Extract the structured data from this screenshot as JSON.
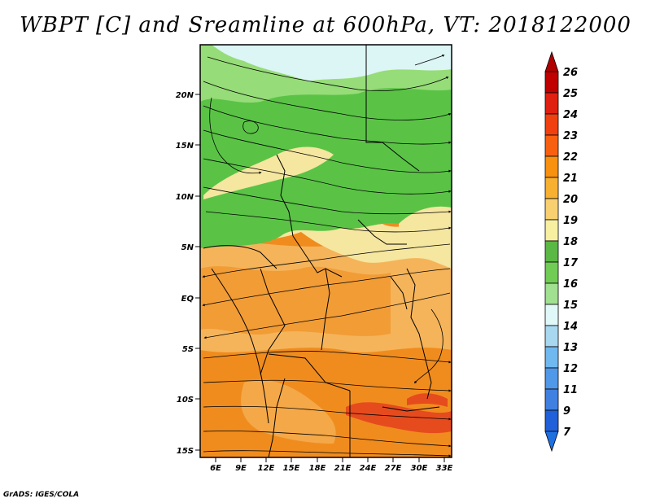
{
  "title": "WBPT [C] and Sreamline at 600hPa, VT: 2018122000",
  "credit": "GrADS: IGES/COLA",
  "lat_labels": [
    "20N",
    "15N",
    "10N",
    "5N",
    "EQ",
    "5S",
    "10S",
    "15S"
  ],
  "lon_labels": [
    "6E",
    "9E",
    "12E",
    "15E",
    "18E",
    "21E",
    "24E",
    "27E",
    "30E",
    "33E"
  ],
  "colorbar": {
    "labels": [
      "26",
      "25",
      "24",
      "23",
      "22",
      "21",
      "20",
      "19",
      "18",
      "17",
      "16",
      "15",
      "14",
      "13",
      "12",
      "11",
      "9",
      "7"
    ],
    "colors": [
      "#c00000",
      "#e02010",
      "#f04010",
      "#f86010",
      "#f89010",
      "#f8b030",
      "#f8d070",
      "#f8f0a0",
      "#5ab845",
      "#70cc55",
      "#a0e090",
      "#e0f8f8",
      "#a8d8f0",
      "#70b8f0",
      "#5098e8",
      "#4080e0",
      "#2060d8"
    ],
    "top_arrow_color": "#b00000",
    "bottom_arrow_color": "#1e70e0"
  },
  "palette": {
    "orange": "#f08c1e",
    "light_orange": "#f5b45a",
    "pale_yellow": "#f5e6a0",
    "green": "#5ac346",
    "light_green": "#96dc78",
    "pale_blue": "#dcf5f5",
    "red_orange": "#e64b1e"
  }
}
